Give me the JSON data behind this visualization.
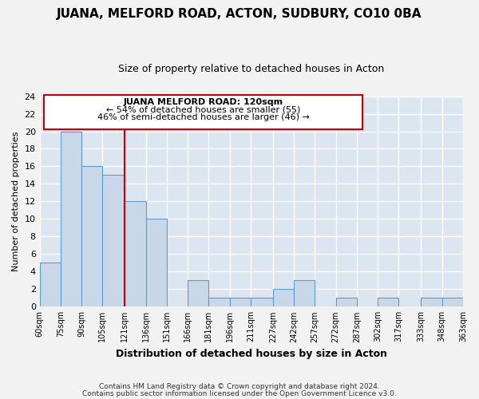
{
  "title": "JUANA, MELFORD ROAD, ACTON, SUDBURY, CO10 0BA",
  "subtitle": "Size of property relative to detached houses in Acton",
  "xlabel": "Distribution of detached houses by size in Acton",
  "ylabel": "Number of detached properties",
  "bin_labels": [
    "60sqm",
    "75sqm",
    "90sqm",
    "105sqm",
    "121sqm",
    "136sqm",
    "151sqm",
    "166sqm",
    "181sqm",
    "196sqm",
    "211sqm",
    "227sqm",
    "242sqm",
    "257sqm",
    "272sqm",
    "287sqm",
    "302sqm",
    "317sqm",
    "333sqm",
    "348sqm",
    "363sqm"
  ],
  "bin_edges": [
    60,
    75,
    90,
    105,
    121,
    136,
    151,
    166,
    181,
    196,
    211,
    227,
    242,
    257,
    272,
    287,
    302,
    317,
    333,
    348,
    363
  ],
  "bar_heights": [
    5,
    20,
    16,
    15,
    12,
    10,
    0,
    3,
    1,
    1,
    1,
    2,
    3,
    0,
    1,
    0,
    1,
    0,
    1,
    1
  ],
  "bar_color": "#c8d8e8",
  "bar_edge_color": "#5b9bd5",
  "grid_color": "#ffffff",
  "bg_color": "#dce6f0",
  "fig_color": "#f2f2f2",
  "annotation_title": "JUANA MELFORD ROAD: 120sqm",
  "annotation_line1": "← 54% of detached houses are smaller (55)",
  "annotation_line2": "46% of semi-detached houses are larger (46) →",
  "vline_x": 121,
  "vline_color": "#cc0000",
  "ann_border_color": "#cc0000",
  "ylim": [
    0,
    24
  ],
  "yticks": [
    0,
    2,
    4,
    6,
    8,
    10,
    12,
    14,
    16,
    18,
    20,
    22,
    24
  ],
  "footer1": "Contains HM Land Registry data © Crown copyright and database right 2024.",
  "footer2": "Contains public sector information licensed under the Open Government Licence v3.0."
}
